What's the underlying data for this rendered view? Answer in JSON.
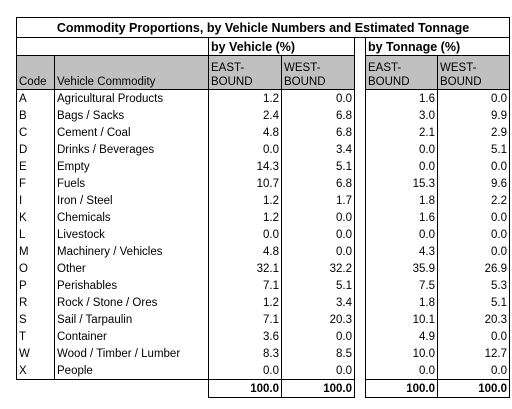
{
  "title": "Commodity Proportions, by Vehicle Numbers and Estimated Tonnage",
  "groups": {
    "vehicle": "by Vehicle (%)",
    "tonnage": "by Tonnage (%)"
  },
  "headers": {
    "code": "Code",
    "commodity": "Vehicle Commodity",
    "eastbound_l1": "EAST-",
    "eastbound_l2": "BOUND",
    "westbound_l1": "WEST-",
    "westbound_l2": "BOUND"
  },
  "rows": [
    {
      "code": "A",
      "name": "Agricultural Products",
      "v_east": "1.2",
      "v_west": "0.0",
      "t_east": "1.6",
      "t_west": "0.0"
    },
    {
      "code": "B",
      "name": "Bags / Sacks",
      "v_east": "2.4",
      "v_west": "6.8",
      "t_east": "3.0",
      "t_west": "9.9"
    },
    {
      "code": "C",
      "name": "Cement / Coal",
      "v_east": "4.8",
      "v_west": "6.8",
      "t_east": "2.1",
      "t_west": "2.9"
    },
    {
      "code": "D",
      "name": "Drinks / Beverages",
      "v_east": "0.0",
      "v_west": "3.4",
      "t_east": "0.0",
      "t_west": "5.1"
    },
    {
      "code": "E",
      "name": "Empty",
      "v_east": "14.3",
      "v_west": "5.1",
      "t_east": "0.0",
      "t_west": "0.0"
    },
    {
      "code": "F",
      "name": "Fuels",
      "v_east": "10.7",
      "v_west": "6.8",
      "t_east": "15.3",
      "t_west": "9.6"
    },
    {
      "code": "I",
      "name": "Iron / Steel",
      "v_east": "1.2",
      "v_west": "1.7",
      "t_east": "1.8",
      "t_west": "2.2"
    },
    {
      "code": "K",
      "name": "Chemicals",
      "v_east": "1.2",
      "v_west": "0.0",
      "t_east": "1.6",
      "t_west": "0.0"
    },
    {
      "code": "L",
      "name": "Livestock",
      "v_east": "0.0",
      "v_west": "0.0",
      "t_east": "0.0",
      "t_west": "0.0"
    },
    {
      "code": "M",
      "name": "Machinery / Vehicles",
      "v_east": "4.8",
      "v_west": "0.0",
      "t_east": "4.3",
      "t_west": "0.0"
    },
    {
      "code": "O",
      "name": "Other",
      "v_east": "32.1",
      "v_west": "32.2",
      "t_east": "35.9",
      "t_west": "26.9"
    },
    {
      "code": "P",
      "name": "Perishables",
      "v_east": "7.1",
      "v_west": "5.1",
      "t_east": "7.5",
      "t_west": "5.3"
    },
    {
      "code": "R",
      "name": "Rock / Stone / Ores",
      "v_east": "1.2",
      "v_west": "3.4",
      "t_east": "1.8",
      "t_west": "5.1"
    },
    {
      "code": "S",
      "name": "Sail / Tarpaulin",
      "v_east": "7.1",
      "v_west": "20.3",
      "t_east": "10.1",
      "t_west": "20.3"
    },
    {
      "code": "T",
      "name": "Container",
      "v_east": "3.6",
      "v_west": "0.0",
      "t_east": "4.9",
      "t_west": "0.0"
    },
    {
      "code": "W",
      "name": "Wood / Timber / Lumber",
      "v_east": "8.3",
      "v_west": "8.5",
      "t_east": "10.0",
      "t_west": "12.7"
    },
    {
      "code": "X",
      "name": "People",
      "v_east": "0.0",
      "v_west": "0.0",
      "t_east": "0.0",
      "t_west": "0.0"
    }
  ],
  "totals": {
    "v_east": "100.0",
    "v_west": "100.0",
    "t_east": "100.0",
    "t_west": "100.0"
  }
}
